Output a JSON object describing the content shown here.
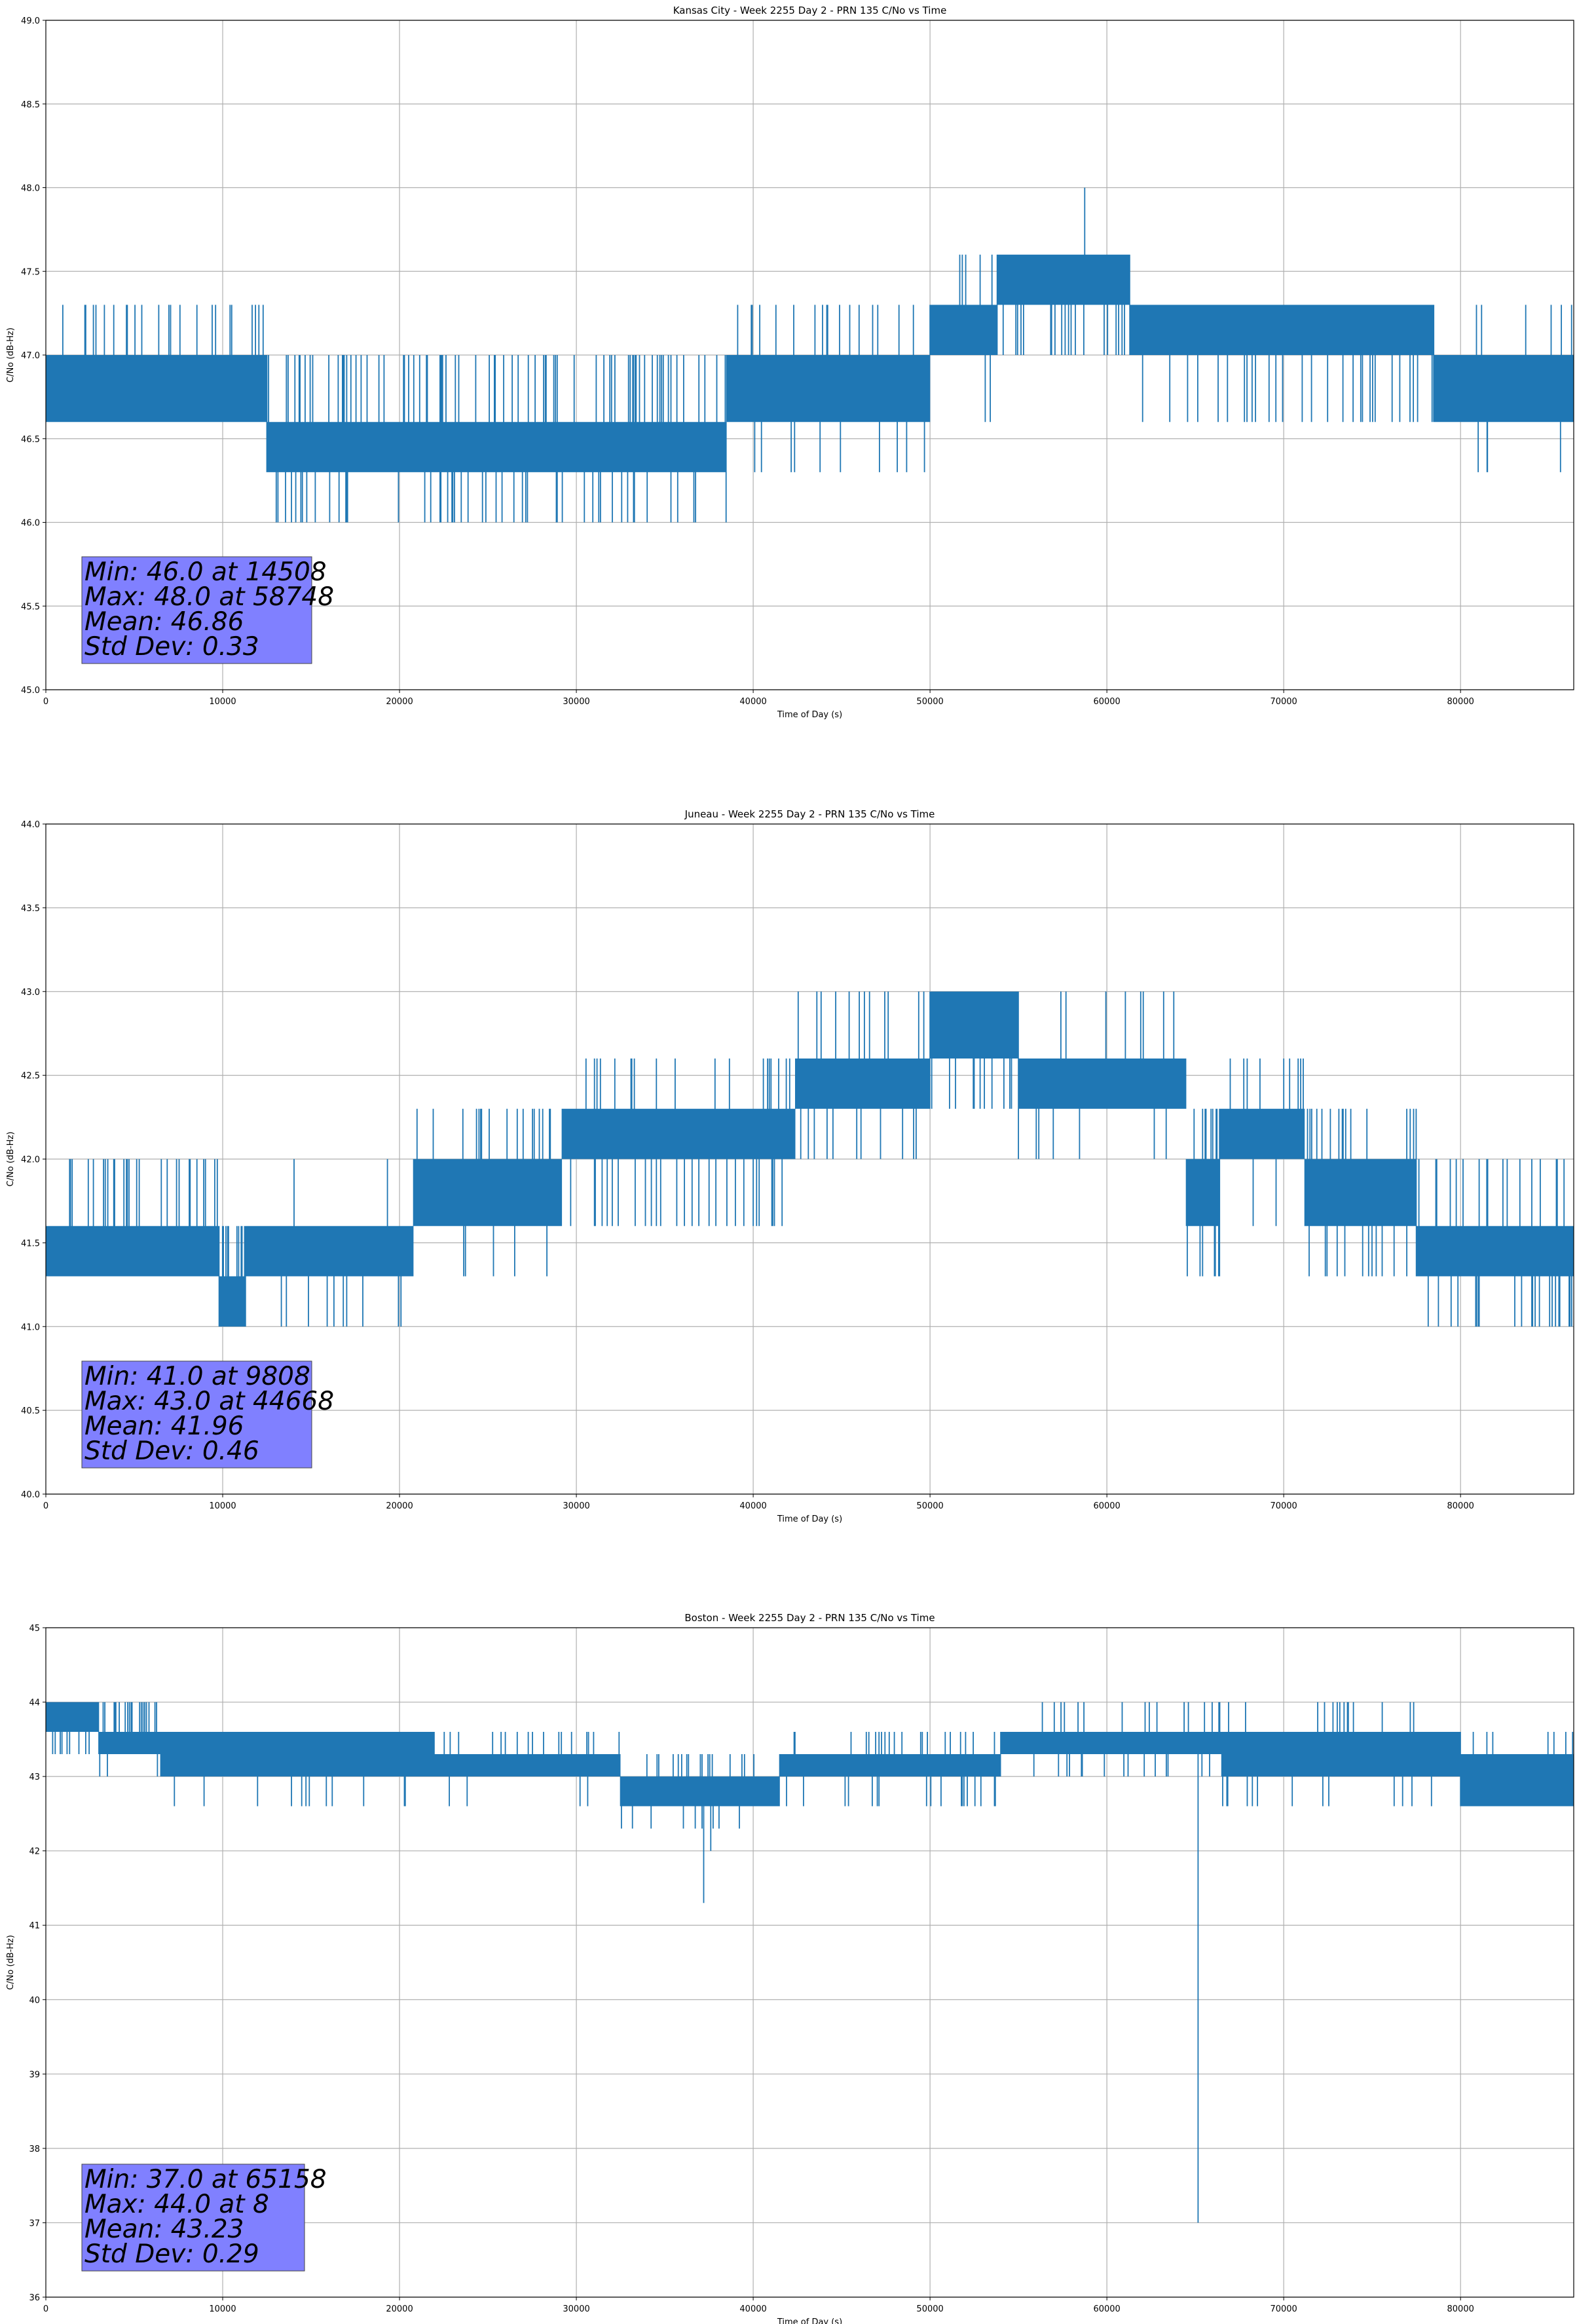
{
  "chart_data": [
    {
      "type": "line",
      "title": "Kansas City - Week 2255 Day 2 - PRN 135 C/No vs Time",
      "xlabel": "Time of Day (s)",
      "ylabel": "C/No (dB-Hz)",
      "xlim": [
        0,
        86400
      ],
      "ylim": [
        45.0,
        49.0
      ],
      "xticks": [
        "0",
        "10000",
        "20000",
        "30000",
        "40000",
        "50000",
        "60000",
        "70000",
        "80000"
      ],
      "yticks": [
        "45.0",
        "45.5",
        "46.0",
        "46.5",
        "47.0",
        "47.5",
        "48.0",
        "48.5",
        "49.0"
      ],
      "grid": true,
      "series_color": "#1f77b4",
      "bands": [
        {
          "x0": 0,
          "x1": 12500,
          "low": 46.6,
          "high": 47.0,
          "up": [
            47.3
          ],
          "down": [],
          "upRate": 0.12,
          "downRate": 0
        },
        {
          "x0": 12500,
          "x1": 38500,
          "low": 46.3,
          "high": 46.6,
          "up": [
            47.0
          ],
          "down": [
            46.0
          ],
          "upRate": 0.12,
          "downRate": 0.08
        },
        {
          "x0": 38500,
          "x1": 50000,
          "low": 46.6,
          "high": 47.0,
          "up": [
            47.3
          ],
          "down": [
            46.3
          ],
          "upRate": 0.06,
          "downRate": 0.03
        },
        {
          "x0": 50000,
          "x1": 53800,
          "low": 47.0,
          "high": 47.3,
          "up": [
            47.6
          ],
          "down": [
            46.6
          ],
          "upRate": 0.08,
          "downRate": 0.02
        },
        {
          "x0": 53800,
          "x1": 61300,
          "low": 47.3,
          "high": 47.6,
          "up": [],
          "down": [
            47.0
          ],
          "upRate": 0,
          "downRate": 0.1
        },
        {
          "x0": 61300,
          "x1": 78500,
          "low": 47.0,
          "high": 47.3,
          "up": [],
          "down": [
            46.6
          ],
          "upRate": 0,
          "downRate": 0.1
        },
        {
          "x0": 78500,
          "x1": 86400,
          "low": 46.6,
          "high": 47.0,
          "up": [
            47.3
          ],
          "down": [
            46.3
          ],
          "upRate": 0.04,
          "downRate": 0.01
        }
      ],
      "spikes": [
        [
          58748,
          48.0
        ],
        [
          14508,
          46.0
        ],
        [
          81500,
          46.3
        ]
      ],
      "stats": {
        "min": "Min: 46.0 at 14508",
        "max": "Max: 48.0 at 58748",
        "mean": "Mean: 46.86",
        "std": "Std Dev: 0.33"
      }
    },
    {
      "type": "line",
      "title": "Juneau - Week 2255 Day 2 - PRN 135 C/No vs Time",
      "xlabel": "Time of Day (s)",
      "ylabel": "C/No (dB-Hz)",
      "xlim": [
        0,
        86400
      ],
      "ylim": [
        40.0,
        44.0
      ],
      "xticks": [
        "0",
        "10000",
        "20000",
        "30000",
        "40000",
        "50000",
        "60000",
        "70000",
        "80000"
      ],
      "yticks": [
        "40.0",
        "40.5",
        "41.0",
        "41.5",
        "42.0",
        "42.5",
        "43.0",
        "43.5",
        "44.0"
      ],
      "grid": true,
      "series_color": "#1f77b4",
      "bands": [
        {
          "x0": 0,
          "x1": 9800,
          "low": 41.3,
          "high": 41.6,
          "up": [
            42.0
          ],
          "down": [],
          "upRate": 0.15,
          "downRate": 0
        },
        {
          "x0": 9800,
          "x1": 11300,
          "low": 41.0,
          "high": 41.3,
          "up": [
            41.6
          ],
          "down": [],
          "upRate": 0.3,
          "downRate": 0
        },
        {
          "x0": 11300,
          "x1": 20800,
          "low": 41.3,
          "high": 41.6,
          "up": [
            42.0
          ],
          "down": [
            41.0
          ],
          "upRate": 0.02,
          "downRate": 0.08
        },
        {
          "x0": 20800,
          "x1": 29200,
          "low": 41.6,
          "high": 42.0,
          "up": [
            42.3
          ],
          "down": [
            41.3
          ],
          "upRate": 0.05,
          "downRate": 0.04
        },
        {
          "x0": 29200,
          "x1": 42400,
          "low": 42.0,
          "high": 42.3,
          "up": [
            42.6
          ],
          "down": [
            41.6
          ],
          "upRate": 0.06,
          "downRate": 0.08
        },
        {
          "x0": 42400,
          "x1": 50000,
          "low": 42.3,
          "high": 42.6,
          "up": [
            43.0
          ],
          "down": [
            42.0
          ],
          "upRate": 0.08,
          "downRate": 0.04
        },
        {
          "x0": 50000,
          "x1": 55000,
          "low": 42.6,
          "high": 43.0,
          "up": [],
          "down": [
            42.3
          ],
          "upRate": 0,
          "downRate": 0.05
        },
        {
          "x0": 55000,
          "x1": 64500,
          "low": 42.3,
          "high": 42.6,
          "up": [
            43.0
          ],
          "down": [
            42.0
          ],
          "upRate": 0.03,
          "downRate": 0.04
        },
        {
          "x0": 64500,
          "x1": 66400,
          "low": 41.6,
          "high": 42.0,
          "up": [
            42.3
          ],
          "down": [
            41.3
          ],
          "upRate": 0.2,
          "downRate": 0.2
        },
        {
          "x0": 66400,
          "x1": 71200,
          "low": 42.0,
          "high": 42.3,
          "up": [
            42.6
          ],
          "down": [
            41.6
          ],
          "upRate": 0.12,
          "downRate": 0.06
        },
        {
          "x0": 71200,
          "x1": 77500,
          "low": 41.6,
          "high": 42.0,
          "up": [
            42.3
          ],
          "down": [
            41.3
          ],
          "upRate": 0.06,
          "downRate": 0.08
        },
        {
          "x0": 77500,
          "x1": 86400,
          "low": 41.3,
          "high": 41.6,
          "up": [
            42.0
          ],
          "down": [
            41.0
          ],
          "upRate": 0.1,
          "downRate": 0.1
        }
      ],
      "spikes": [
        [
          44668,
          43.0
        ],
        [
          9808,
          41.0
        ]
      ],
      "stats": {
        "min": "Min: 41.0 at 9808",
        "max": "Max: 43.0 at 44668",
        "mean": "Mean: 41.96",
        "std": "Std Dev: 0.46"
      }
    },
    {
      "type": "line",
      "title": "Boston - Week 2255 Day 2 - PRN 135 C/No vs Time",
      "xlabel": "Time of Day (s)",
      "ylabel": "C/No (dB-Hz)",
      "xlim": [
        0,
        86400
      ],
      "ylim": [
        36,
        45
      ],
      "xticks": [
        "0",
        "10000",
        "20000",
        "30000",
        "40000",
        "50000",
        "60000",
        "70000",
        "80000"
      ],
      "yticks": [
        "36",
        "37",
        "38",
        "39",
        "40",
        "41",
        "42",
        "43",
        "44",
        "45"
      ],
      "grid": true,
      "series_color": "#1f77b4",
      "bands": [
        {
          "x0": 0,
          "x1": 3000,
          "low": 43.6,
          "high": 44.0,
          "up": [],
          "down": [
            43.3
          ],
          "upRate": 0,
          "downRate": 0.1
        },
        {
          "x0": 3000,
          "x1": 6500,
          "low": 43.3,
          "high": 43.6,
          "up": [
            44.0
          ],
          "down": [
            43.0
          ],
          "upRate": 0.2,
          "downRate": 0.03
        },
        {
          "x0": 6500,
          "x1": 22000,
          "low": 43.0,
          "high": 43.6,
          "up": [],
          "down": [
            42.6
          ],
          "upRate": 0,
          "downRate": 0.04
        },
        {
          "x0": 22000,
          "x1": 32500,
          "low": 43.0,
          "high": 43.3,
          "up": [
            43.6
          ],
          "down": [
            42.6
          ],
          "upRate": 0.08,
          "downRate": 0.04
        },
        {
          "x0": 32500,
          "x1": 41500,
          "low": 42.6,
          "high": 43.0,
          "up": [
            43.3
          ],
          "down": [
            42.3
          ],
          "upRate": 0.06,
          "downRate": 0.06
        },
        {
          "x0": 41500,
          "x1": 54000,
          "low": 43.0,
          "high": 43.3,
          "up": [
            43.6
          ],
          "down": [
            42.6
          ],
          "upRate": 0.07,
          "downRate": 0.03
        },
        {
          "x0": 54000,
          "x1": 66500,
          "low": 43.3,
          "high": 43.6,
          "up": [
            44.0
          ],
          "down": [
            43.0
          ],
          "upRate": 0.04,
          "downRate": 0.06
        },
        {
          "x0": 66500,
          "x1": 80000,
          "low": 43.0,
          "high": 43.6,
          "up": [
            44.0
          ],
          "down": [
            42.6
          ],
          "upRate": 0.04,
          "downRate": 0.04
        },
        {
          "x0": 80000,
          "x1": 86400,
          "low": 42.6,
          "high": 43.3,
          "up": [
            43.6
          ],
          "down": [],
          "upRate": 0.05,
          "downRate": 0
        }
      ],
      "spikes": [
        [
          65158,
          37.0
        ],
        [
          37200,
          41.3
        ],
        [
          37600,
          42.0
        ],
        [
          8,
          44.0
        ]
      ],
      "stats": {
        "min": "Min: 37.0 at 65158",
        "max": "Max: 44.0 at 8",
        "mean": "Mean: 43.23",
        "std": "Std Dev: 0.29"
      }
    }
  ]
}
